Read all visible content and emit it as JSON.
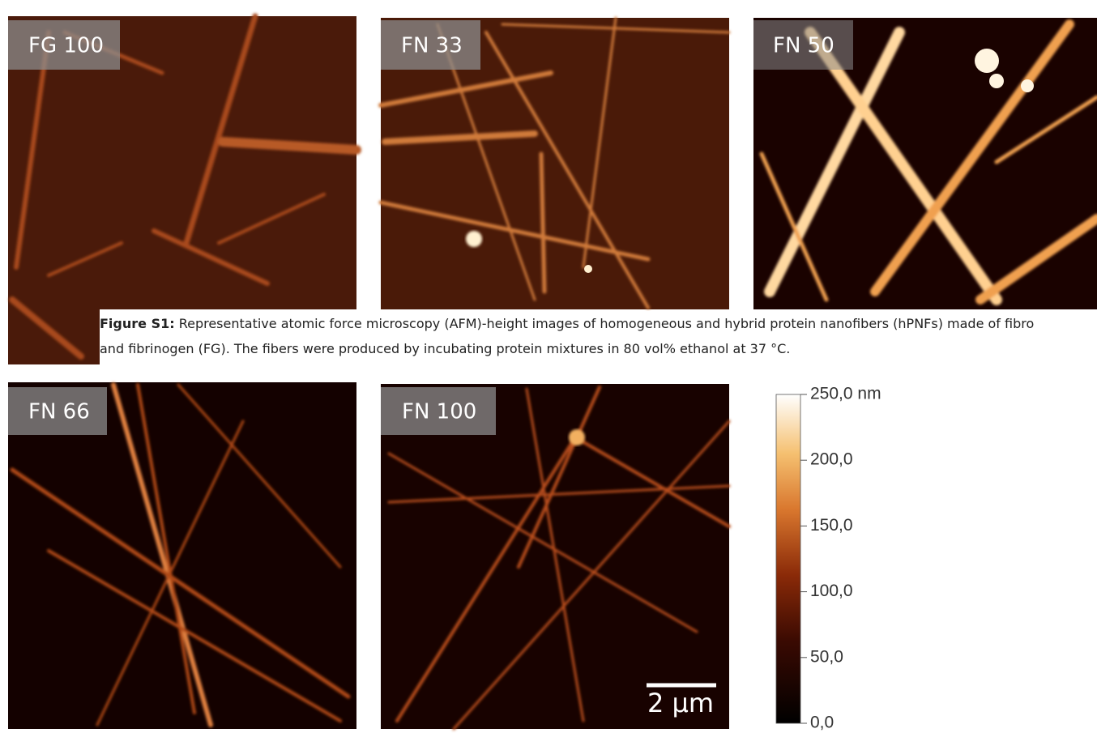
{
  "panels": [
    {
      "label": "FG 100"
    },
    {
      "label": "FN 33"
    },
    {
      "label": "FN 50"
    },
    {
      "label": "FN 66"
    },
    {
      "label": "FN 100"
    }
  ],
  "caption": {
    "lead": "Figure S1:",
    "line1": " Representative atomic force microscopy (AFM)-height images of homogeneous and hybrid protein nanofibers (hPNFs) made of fibro",
    "line2": "and fibrinogen (FG). The fibers were produced by incubating protein mixtures in 80 vol% ethanol at 37 °C."
  },
  "scale_bar": {
    "label": "2 µm"
  },
  "colorbar": {
    "ticks": [
      {
        "value": 250,
        "label": "250,0 nm"
      },
      {
        "value": 200,
        "label": "200,0"
      },
      {
        "value": 150,
        "label": "150,0"
      },
      {
        "value": 100,
        "label": "100,0"
      },
      {
        "value": 50,
        "label": "50,0"
      },
      {
        "value": 0,
        "label": "0,0"
      }
    ]
  }
}
